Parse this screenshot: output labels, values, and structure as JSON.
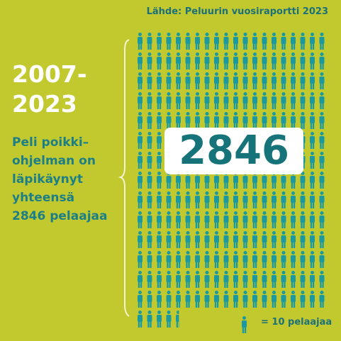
{
  "source": "Lähde: Peluurin vuosiraportti 2023",
  "period_line1": "2007-",
  "period_line2": "2023",
  "description": [
    "Peli poikki–",
    "ohjelman on",
    "läpikäynyt",
    "yhteensä",
    "2846 pelaajaa"
  ],
  "total_label": "2846",
  "total": 2846,
  "unit_value": 10,
  "legend": "= 10 pelaajaa",
  "icon_color": "#1a9aa0"
}
